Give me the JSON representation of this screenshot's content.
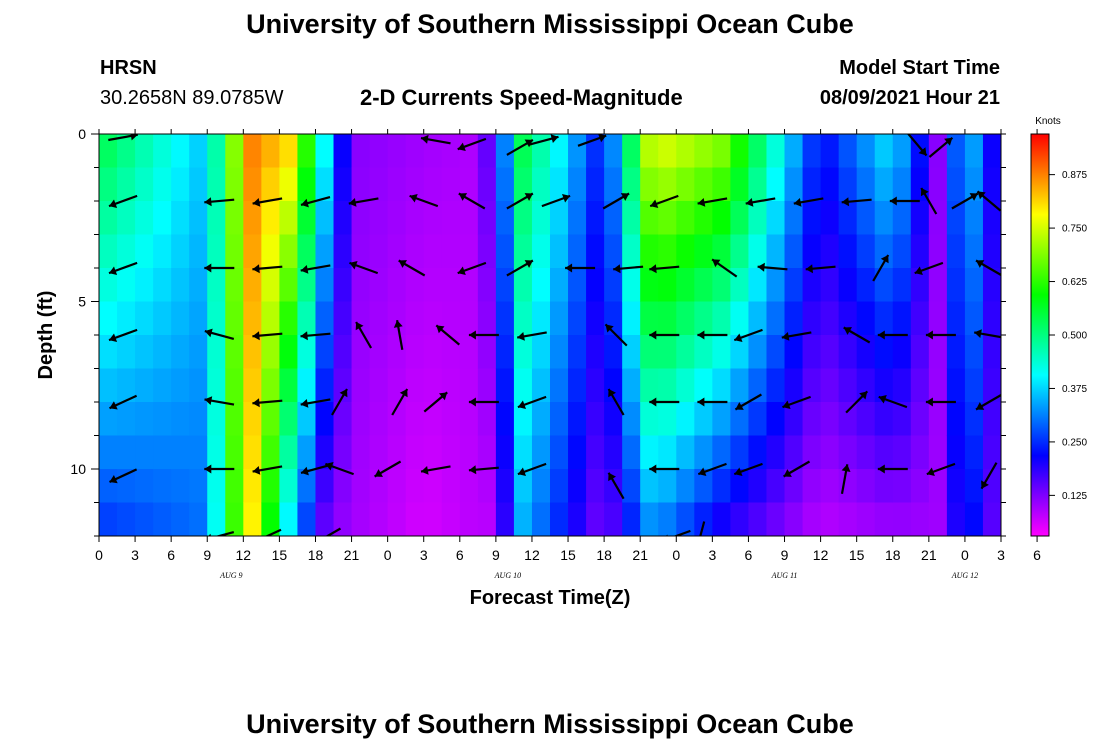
{
  "header": {
    "title": "University of Southern Mississippi Ocean Cube",
    "station": "HRSN",
    "coordinates": "30.2658N  89.0785W",
    "plot_title": "2-D Currents Speed-Magnitude",
    "model_label": "Model Start Time",
    "model_time": "08/09/2021 Hour 21"
  },
  "footer": {
    "title": "University of Southern Mississippi Ocean Cube"
  },
  "colorbar": {
    "unit": "Knots",
    "ticks": [
      "0.875",
      "0.750",
      "0.625",
      "0.500",
      "0.375",
      "0.250",
      "0.125"
    ],
    "tick_values": [
      0.875,
      0.75,
      0.625,
      0.5,
      0.375,
      0.25,
      0.125
    ],
    "range": [
      0.03,
      0.97
    ],
    "colors": [
      "#ff00ff",
      "#8000ff",
      "#0000ff",
      "#0080ff",
      "#00ffff",
      "#00ff80",
      "#00ff00",
      "#80ff00",
      "#ffff00",
      "#ff8000",
      "#ff0000"
    ]
  },
  "chart_data": {
    "type": "heatmap",
    "title": "2-D Currents Speed-Magnitude",
    "xlabel": "Forecast Time(Z)",
    "ylabel": "Depth (ft)",
    "xlim": [
      0,
      75
    ],
    "ylim": [
      0,
      12
    ],
    "y_reversed": true,
    "x_tick_labels": [
      "0",
      "3",
      "6",
      "9",
      "12",
      "15",
      "18",
      "21",
      "0",
      "3",
      "6",
      "9",
      "12",
      "15",
      "18",
      "21",
      "0",
      "3",
      "6",
      "9",
      "12",
      "15",
      "18",
      "21",
      "0",
      "3",
      "6"
    ],
    "y_tick_labels": [
      "0",
      "5",
      "10"
    ],
    "y_tick_values": [
      0,
      5,
      10
    ],
    "date_labels": [
      "AUG 9",
      "AUG 10",
      "AUG 11",
      "AUG 12"
    ],
    "date_label_hours": [
      11,
      34,
      57,
      72
    ],
    "profile_hours": [
      0,
      9,
      12.5,
      16,
      19,
      21,
      27,
      31,
      33,
      35,
      38,
      42,
      46,
      52,
      60,
      66,
      70,
      72,
      75
    ],
    "profile_upper": [
      0.55,
      0.36,
      0.88,
      0.82,
      0.38,
      0.12,
      0.1,
      0.09,
      0.18,
      0.55,
      0.42,
      0.22,
      0.78,
      0.7,
      0.22,
      0.4,
      0.1,
      0.4,
      0.15
    ],
    "profile_lower": [
      0.25,
      0.3,
      0.82,
      0.35,
      0.12,
      0.1,
      0.06,
      0.08,
      0.08,
      0.35,
      0.25,
      0.12,
      0.32,
      0.18,
      0.08,
      0.1,
      0.1,
      0.25,
      0.12
    ],
    "cell_hours": 1.5,
    "cell_depth_ft": 1,
    "vectors": [
      {
        "t": 2,
        "d": 0.1,
        "deg": 190
      },
      {
        "t": 28,
        "d": 0.2,
        "deg": 350
      },
      {
        "t": 31,
        "d": 0.3,
        "deg": 20
      },
      {
        "t": 35,
        "d": 0.4,
        "deg": 210
      },
      {
        "t": 37,
        "d": 0.2,
        "deg": 195
      },
      {
        "t": 41,
        "d": 0.2,
        "deg": 200
      },
      {
        "t": 68,
        "d": 0.3,
        "deg": 130
      },
      {
        "t": 70,
        "d": 0.4,
        "deg": 220
      },
      {
        "t": 2,
        "d": 2,
        "deg": 20
      },
      {
        "t": 10,
        "d": 2,
        "deg": 5
      },
      {
        "t": 14,
        "d": 2,
        "deg": 10
      },
      {
        "t": 18,
        "d": 2,
        "deg": 15
      },
      {
        "t": 22,
        "d": 2,
        "deg": 10
      },
      {
        "t": 27,
        "d": 2,
        "deg": 340
      },
      {
        "t": 31,
        "d": 2,
        "deg": 330
      },
      {
        "t": 35,
        "d": 2,
        "deg": 210
      },
      {
        "t": 38,
        "d": 2,
        "deg": 200
      },
      {
        "t": 43,
        "d": 2,
        "deg": 210
      },
      {
        "t": 47,
        "d": 2,
        "deg": 20
      },
      {
        "t": 51,
        "d": 2,
        "deg": 10
      },
      {
        "t": 55,
        "d": 2,
        "deg": 10
      },
      {
        "t": 59,
        "d": 2,
        "deg": 10
      },
      {
        "t": 63,
        "d": 2,
        "deg": 5
      },
      {
        "t": 67,
        "d": 2,
        "deg": 0
      },
      {
        "t": 69,
        "d": 2,
        "deg": 300
      },
      {
        "t": 72,
        "d": 2,
        "deg": 210
      },
      {
        "t": 74,
        "d": 2,
        "deg": 320
      },
      {
        "t": 2,
        "d": 4,
        "deg": 20
      },
      {
        "t": 10,
        "d": 4,
        "deg": 0
      },
      {
        "t": 14,
        "d": 4,
        "deg": 5
      },
      {
        "t": 18,
        "d": 4,
        "deg": 10
      },
      {
        "t": 22,
        "d": 4,
        "deg": 340
      },
      {
        "t": 26,
        "d": 4,
        "deg": 330
      },
      {
        "t": 31,
        "d": 4,
        "deg": 20
      },
      {
        "t": 35,
        "d": 4,
        "deg": 210
      },
      {
        "t": 40,
        "d": 4,
        "deg": 0
      },
      {
        "t": 44,
        "d": 4,
        "deg": 5
      },
      {
        "t": 47,
        "d": 4,
        "deg": 5
      },
      {
        "t": 52,
        "d": 4,
        "deg": 325
      },
      {
        "t": 56,
        "d": 4,
        "deg": 355
      },
      {
        "t": 60,
        "d": 4,
        "deg": 5
      },
      {
        "t": 65,
        "d": 4,
        "deg": 240
      },
      {
        "t": 69,
        "d": 4,
        "deg": 20
      },
      {
        "t": 74,
        "d": 4,
        "deg": 330
      },
      {
        "t": 2,
        "d": 6,
        "deg": 20
      },
      {
        "t": 10,
        "d": 6,
        "deg": 345
      },
      {
        "t": 14,
        "d": 6,
        "deg": 5
      },
      {
        "t": 18,
        "d": 6,
        "deg": 5
      },
      {
        "t": 22,
        "d": 6,
        "deg": 300
      },
      {
        "t": 25,
        "d": 6,
        "deg": 280
      },
      {
        "t": 29,
        "d": 6,
        "deg": 320
      },
      {
        "t": 32,
        "d": 6,
        "deg": 0
      },
      {
        "t": 36,
        "d": 6,
        "deg": 10
      },
      {
        "t": 43,
        "d": 6,
        "deg": 315
      },
      {
        "t": 47,
        "d": 6,
        "deg": 0
      },
      {
        "t": 51,
        "d": 6,
        "deg": 0
      },
      {
        "t": 54,
        "d": 6,
        "deg": 20
      },
      {
        "t": 58,
        "d": 6,
        "deg": 10
      },
      {
        "t": 63,
        "d": 6,
        "deg": 330
      },
      {
        "t": 66,
        "d": 6,
        "deg": 0
      },
      {
        "t": 70,
        "d": 6,
        "deg": 0
      },
      {
        "t": 74,
        "d": 6,
        "deg": 350
      },
      {
        "t": 2,
        "d": 8,
        "deg": 25
      },
      {
        "t": 10,
        "d": 8,
        "deg": 350
      },
      {
        "t": 14,
        "d": 8,
        "deg": 5
      },
      {
        "t": 18,
        "d": 8,
        "deg": 10
      },
      {
        "t": 20,
        "d": 8,
        "deg": 240
      },
      {
        "t": 25,
        "d": 8,
        "deg": 240
      },
      {
        "t": 28,
        "d": 8,
        "deg": 220
      },
      {
        "t": 32,
        "d": 8,
        "deg": 0
      },
      {
        "t": 36,
        "d": 8,
        "deg": 20
      },
      {
        "t": 43,
        "d": 8,
        "deg": 300
      },
      {
        "t": 47,
        "d": 8,
        "deg": 0
      },
      {
        "t": 51,
        "d": 8,
        "deg": 0
      },
      {
        "t": 54,
        "d": 8,
        "deg": 30
      },
      {
        "t": 58,
        "d": 8,
        "deg": 20
      },
      {
        "t": 63,
        "d": 8,
        "deg": 225
      },
      {
        "t": 66,
        "d": 8,
        "deg": 340
      },
      {
        "t": 70,
        "d": 8,
        "deg": 0
      },
      {
        "t": 74,
        "d": 8,
        "deg": 30
      },
      {
        "t": 2,
        "d": 10.2,
        "deg": 25
      },
      {
        "t": 10,
        "d": 10,
        "deg": 0
      },
      {
        "t": 14,
        "d": 10,
        "deg": 10
      },
      {
        "t": 18,
        "d": 10,
        "deg": 15
      },
      {
        "t": 20,
        "d": 10,
        "deg": 340
      },
      {
        "t": 24,
        "d": 10,
        "deg": 30
      },
      {
        "t": 28,
        "d": 10,
        "deg": 10
      },
      {
        "t": 32,
        "d": 10,
        "deg": 5
      },
      {
        "t": 36,
        "d": 10,
        "deg": 20
      },
      {
        "t": 43,
        "d": 10.5,
        "deg": 300
      },
      {
        "t": 47,
        "d": 10,
        "deg": 0
      },
      {
        "t": 51,
        "d": 10,
        "deg": 20
      },
      {
        "t": 54,
        "d": 10,
        "deg": 20
      },
      {
        "t": 58,
        "d": 10,
        "deg": 30
      },
      {
        "t": 62,
        "d": 10.3,
        "deg": 260
      },
      {
        "t": 66,
        "d": 10,
        "deg": 0
      },
      {
        "t": 70,
        "d": 10,
        "deg": 20
      },
      {
        "t": 74,
        "d": 10.2,
        "deg": 60
      },
      {
        "t": 10,
        "d": 12,
        "deg": 15
      },
      {
        "t": 14,
        "d": 12,
        "deg": 25
      },
      {
        "t": 19,
        "d": 12,
        "deg": 30
      },
      {
        "t": 48,
        "d": 12,
        "deg": 20
      },
      {
        "t": 50,
        "d": 12,
        "deg": 75
      }
    ]
  }
}
